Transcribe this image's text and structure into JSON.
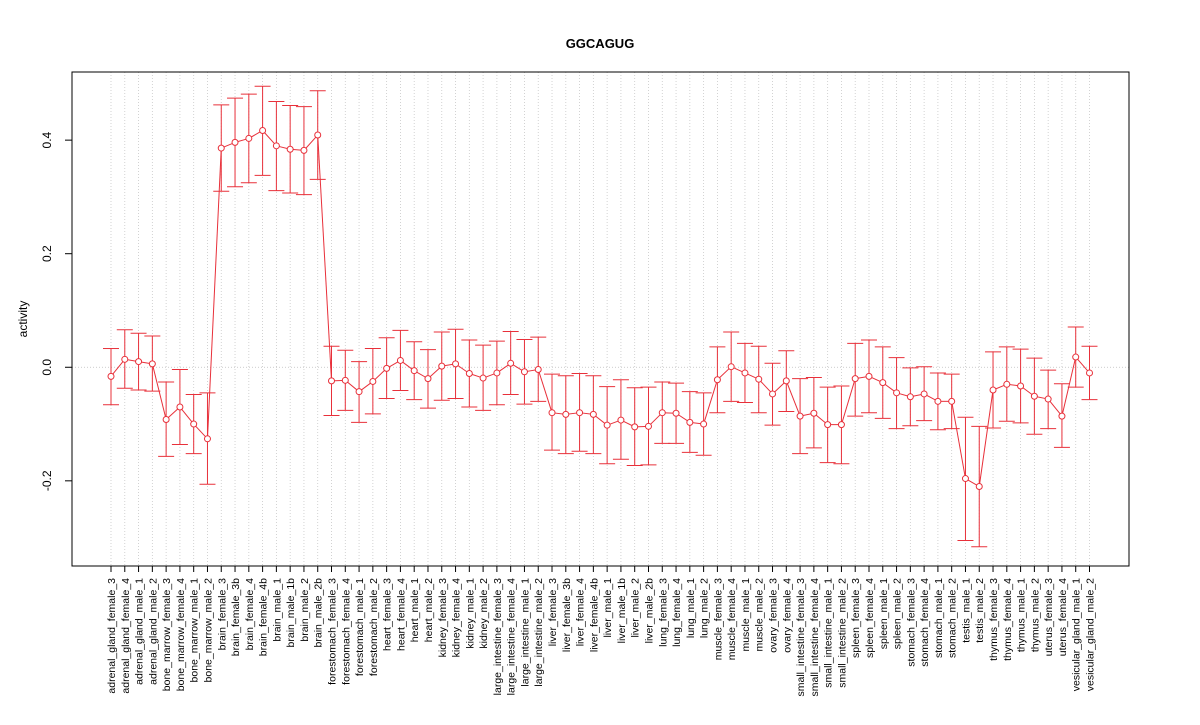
{
  "chart_data": {
    "type": "line",
    "title": "GGCAGUG",
    "xlabel": "",
    "ylabel": "activity",
    "ylim": [
      -0.35,
      0.52
    ],
    "yticks": [
      -0.2,
      0.0,
      0.2,
      0.4
    ],
    "ytick_labels": [
      "-0.2",
      "0.0",
      "0.2",
      "0.4"
    ],
    "grid": true,
    "colors": {
      "series": "#e8303a",
      "grid": "#c8c8c8",
      "zero_line": "#bdbdbd",
      "axis": "#000000"
    },
    "categories": [
      "adrenal_gland_female_3",
      "adrenal_gland_female_4",
      "adrenal_gland_male_1",
      "adrenal_gland_male_2",
      "bone_marrow_female_3",
      "bone_marrow_female_4",
      "bone_marrow_male_1",
      "bone_marrow_male_2",
      "brain_female_3",
      "brain_female_3b",
      "brain_female_4",
      "brain_female_4b",
      "brain_male_1",
      "brain_male_1b",
      "brain_male_2",
      "brain_male_2b",
      "forestomach_female_3",
      "forestomach_female_4",
      "forestomach_male_1",
      "forestomach_male_2",
      "heart_female_3",
      "heart_female_4",
      "heart_male_1",
      "heart_male_2",
      "kidney_female_3",
      "kidney_female_4",
      "kidney_male_1",
      "kidney_male_2",
      "large_intestine_female_3",
      "large_intestine_female_4",
      "large_intestine_male_1",
      "large_intestine_male_2",
      "liver_female_3",
      "liver_female_3b",
      "liver_female_4",
      "liver_female_4b",
      "liver_male_1",
      "liver_male_1b",
      "liver_male_2",
      "liver_male_2b",
      "lung_female_3",
      "lung_female_4",
      "lung_male_1",
      "lung_male_2",
      "muscle_female_3",
      "muscle_female_4",
      "muscle_male_1",
      "muscle_male_2",
      "ovary_female_3",
      "ovary_female_4",
      "small_intestine_female_3",
      "small_intestine_female_4",
      "small_intestine_male_1",
      "small_intestine_male_2",
      "spleen_female_3",
      "spleen_female_4",
      "spleen_male_1",
      "spleen_male_2",
      "stomach_female_3",
      "stomach_female_4",
      "stomach_male_1",
      "stomach_male_2",
      "testis_male_1",
      "testis_male_2",
      "thymus_female_3",
      "thymus_female_4",
      "thymus_male_1",
      "thymus_male_2",
      "uterus_female_3",
      "uterus_female_4",
      "vesicular_gland_male_1",
      "vesicular_gland_male_2"
    ],
    "series": [
      {
        "name": "GGCAGUG",
        "values": [
          -0.016,
          0.014,
          0.01,
          0.006,
          -0.092,
          -0.07,
          -0.1,
          -0.126,
          0.386,
          0.396,
          0.403,
          0.417,
          0.39,
          0.384,
          0.382,
          0.409,
          -0.024,
          -0.023,
          -0.043,
          -0.025,
          -0.002,
          0.012,
          -0.006,
          -0.02,
          0.002,
          0.006,
          -0.011,
          -0.019,
          -0.01,
          0.007,
          -0.008,
          -0.004,
          -0.08,
          -0.083,
          -0.08,
          -0.083,
          -0.102,
          -0.093,
          -0.105,
          -0.104,
          -0.08,
          -0.081,
          -0.097,
          -0.1,
          -0.022,
          0.001,
          -0.01,
          -0.021,
          -0.047,
          -0.024,
          -0.086,
          -0.081,
          -0.101,
          -0.101,
          -0.02,
          -0.016,
          -0.027,
          -0.045,
          -0.052,
          -0.047,
          -0.06,
          -0.06,
          -0.196,
          -0.21,
          -0.04,
          -0.03,
          -0.033,
          -0.051,
          -0.056,
          -0.086,
          0.018,
          -0.01
        ],
        "lower": [
          -0.066,
          -0.037,
          -0.04,
          -0.042,
          -0.157,
          -0.136,
          -0.152,
          -0.206,
          0.31,
          0.318,
          0.325,
          0.338,
          0.311,
          0.307,
          0.304,
          0.331,
          -0.085,
          -0.076,
          -0.097,
          -0.082,
          -0.055,
          -0.041,
          -0.057,
          -0.072,
          -0.058,
          -0.055,
          -0.07,
          -0.076,
          -0.066,
          -0.048,
          -0.065,
          -0.06,
          -0.146,
          -0.152,
          -0.148,
          -0.152,
          -0.17,
          -0.162,
          -0.173,
          -0.172,
          -0.134,
          -0.134,
          -0.15,
          -0.155,
          -0.08,
          -0.06,
          -0.062,
          -0.08,
          -0.102,
          -0.078,
          -0.152,
          -0.142,
          -0.168,
          -0.17,
          -0.086,
          -0.08,
          -0.09,
          -0.108,
          -0.103,
          -0.094,
          -0.11,
          -0.108,
          -0.305,
          -0.316,
          -0.107,
          -0.095,
          -0.098,
          -0.118,
          -0.108,
          -0.141,
          -0.035,
          -0.057
        ],
        "upper": [
          0.033,
          0.066,
          0.06,
          0.055,
          -0.026,
          -0.004,
          -0.048,
          -0.045,
          0.462,
          0.474,
          0.481,
          0.495,
          0.468,
          0.461,
          0.459,
          0.487,
          0.037,
          0.03,
          0.01,
          0.033,
          0.052,
          0.065,
          0.045,
          0.031,
          0.062,
          0.067,
          0.048,
          0.039,
          0.046,
          0.063,
          0.049,
          0.053,
          -0.012,
          -0.015,
          -0.011,
          -0.015,
          -0.034,
          -0.022,
          -0.036,
          -0.035,
          -0.026,
          -0.028,
          -0.043,
          -0.045,
          0.036,
          0.062,
          0.042,
          0.037,
          0.007,
          0.029,
          -0.02,
          -0.018,
          -0.035,
          -0.033,
          0.042,
          0.048,
          0.036,
          0.017,
          -0.001,
          0.001,
          -0.01,
          -0.012,
          -0.088,
          -0.104,
          0.027,
          0.036,
          0.032,
          0.016,
          -0.005,
          -0.029,
          0.071,
          0.037
        ]
      }
    ]
  }
}
